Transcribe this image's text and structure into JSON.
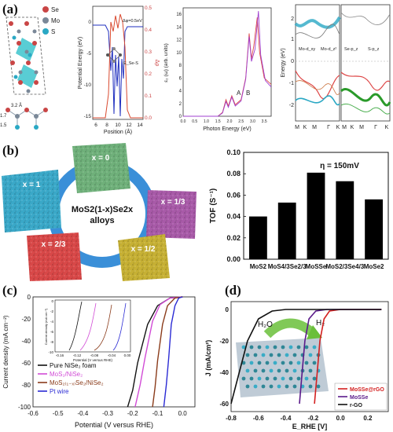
{
  "panel_labels": {
    "a": "(a)",
    "b": "(b)",
    "c": "(c)",
    "d": "(d)"
  },
  "a": {
    "legend": {
      "se": "Se",
      "mo": "Mo",
      "s": "S"
    },
    "structure_labels": {
      "bond1": "3.2 Å",
      "d1": "1.7",
      "d2": "1.5"
    },
    "potential": {
      "xlabel": "Position (Å)",
      "ylabel_left": "Potential Energy (eV)",
      "ylabel_right": "Δρ",
      "xticks": [
        "6",
        "8",
        "10",
        "12",
        "14"
      ],
      "yticks_left": [
        "0",
        "-5",
        "-10",
        "-15"
      ],
      "yticks_right": [
        "0.0",
        "0.1",
        "0.2",
        "0.3",
        "0.4",
        "0.5"
      ],
      "annot_top": "Δφ=0.5eV",
      "annot_mid": "E_Se-S"
    },
    "absorption": {
      "xlabel": "Photon Energy (eV)",
      "ylabel": "ε₂ (ω) (arb. units)",
      "xticks": [
        "0.0",
        "0.5",
        "1.0",
        "1.5",
        "2.0",
        "2.5",
        "3.0",
        "3.5"
      ],
      "yticks": [
        "0",
        "2",
        "4",
        "6",
        "8",
        "10",
        "12",
        "14",
        "16"
      ],
      "peak_a": "A",
      "peak_b": "B",
      "curves": {
        "red": [
          [
            0,
            0
          ],
          [
            1.5,
            0
          ],
          [
            1.7,
            0.6
          ],
          [
            1.85,
            2.6
          ],
          [
            1.95,
            1.6
          ],
          [
            2.1,
            3.2
          ],
          [
            2.25,
            1.8
          ],
          [
            2.5,
            2.6
          ],
          [
            2.7,
            6
          ],
          [
            2.85,
            13
          ],
          [
            2.95,
            9
          ],
          [
            3.05,
            11
          ],
          [
            3.2,
            15.5
          ],
          [
            3.3,
            10
          ],
          [
            3.5,
            6
          ],
          [
            3.8,
            5
          ]
        ],
        "purple": [
          [
            0,
            0
          ],
          [
            1.5,
            0
          ],
          [
            1.7,
            0.5
          ],
          [
            1.85,
            2.3
          ],
          [
            1.95,
            1.4
          ],
          [
            2.1,
            3
          ],
          [
            2.25,
            1.6
          ],
          [
            2.5,
            2.4
          ],
          [
            2.7,
            5.8
          ],
          [
            2.85,
            12.5
          ],
          [
            2.95,
            8.6
          ],
          [
            3.1,
            10.5
          ],
          [
            3.25,
            16.5
          ],
          [
            3.35,
            9.6
          ],
          [
            3.55,
            5.6
          ],
          [
            3.8,
            4.6
          ]
        ]
      }
    },
    "bands": {
      "ylabel": "Energy (eV)",
      "yticks": [
        "2",
        "1",
        "0",
        "-1",
        "-2"
      ],
      "xticks_left": [
        "M",
        "K",
        "M",
        "Γ",
        "K"
      ],
      "xticks_right": [
        "M",
        "K",
        "M",
        "Γ",
        "K"
      ],
      "labels": [
        "Mo-d_xy",
        "Mo-d_z²",
        "Se-p_z",
        "S-p_z"
      ]
    }
  },
  "b": {
    "ring_text": [
      "MoS2(1-x)Se2x",
      "alloys"
    ],
    "tiles": [
      "x = 0",
      "x = 1/3",
      "x = 1/2",
      "x = 2/3",
      "x = 1"
    ],
    "chart_data": {
      "type": "bar",
      "categories": [
        "MoS2",
        "MoS4/3Se2/3",
        "MoSSe",
        "MoS2/3Se4/3",
        "MoSe2"
      ],
      "values": [
        0.04,
        0.053,
        0.081,
        0.073,
        0.056
      ],
      "ylabel": "TOF (S⁻¹)",
      "ylim": [
        0.0,
        0.1
      ],
      "yticks": [
        "0.00",
        "0.02",
        "0.04",
        "0.06",
        "0.08",
        "0.10"
      ],
      "annotation": "η = 150mV"
    }
  },
  "c": {
    "chart_data": {
      "type": "line",
      "xlabel": "Potential (V versus RHE)",
      "ylabel": "Current density (mA cm⁻²)",
      "xlim": [
        -0.6,
        0.05
      ],
      "ylim": [
        -100,
        0
      ],
      "xticks": [
        "-0.6",
        "-0.5",
        "-0.4",
        "-0.3",
        "-0.2",
        "-0.1",
        "0.0"
      ],
      "yticks": [
        "0",
        "-20",
        "-40",
        "-60",
        "-80",
        "-100"
      ],
      "series": [
        {
          "name": "Pure NiSe2 foam",
          "color": "#111111",
          "x": [
            -0.22,
            -0.2,
            -0.18,
            -0.14,
            -0.1,
            -0.05,
            0.0
          ],
          "y": [
            -100,
            -85,
            -60,
            -25,
            -8,
            -1,
            0
          ]
        },
        {
          "name": "MoS2/NiSe2",
          "color": "#d14bd6",
          "x": [
            -0.19,
            -0.17,
            -0.15,
            -0.12,
            -0.09,
            -0.05,
            0.0
          ],
          "y": [
            -100,
            -80,
            -55,
            -22,
            -7,
            -1,
            0
          ]
        },
        {
          "name": "MoS2(1-x)Se2/NiSe2",
          "color": "#8a3b1a",
          "x": [
            -0.12,
            -0.11,
            -0.1,
            -0.08,
            -0.06,
            -0.03,
            0.0
          ],
          "y": [
            -100,
            -82,
            -58,
            -25,
            -8,
            -1,
            0
          ]
        },
        {
          "name": "Pt wire",
          "color": "#2a2ad4",
          "x": [
            -0.075,
            -0.065,
            -0.055,
            -0.045,
            -0.03,
            -0.015,
            0.0
          ],
          "y": [
            -100,
            -80,
            -55,
            -25,
            -8,
            -1,
            0
          ]
        }
      ],
      "legend": [
        "Pure NiSe₂ foam",
        "MoS₂/NiSe₂",
        "MoS₂₍₁₋ₓ₎Se₂/NiSe₂",
        "Pt wire"
      ],
      "inset": {
        "xlabel": "Potential (V versus RHE)",
        "ylabel": "Current density (mA cm⁻²)",
        "xticks": [
          "-0.16",
          "-0.12",
          "-0.08",
          "-0.04",
          "0.00"
        ],
        "yticks": [
          "0",
          "-2",
          "-4",
          "-6",
          "-8",
          "-10"
        ]
      }
    }
  },
  "d": {
    "chart_data": {
      "type": "line",
      "xlabel": "E_RHE [V]",
      "ylabel": "J (mA/cm²)",
      "xlim": [
        -0.8,
        0.35
      ],
      "ylim": [
        -65,
        5
      ],
      "xticks": [
        "-0.8",
        "-0.6",
        "-0.4",
        "-0.2",
        "0.0",
        "0.2"
      ],
      "yticks": [
        "0",
        "-20",
        "-40",
        "-60"
      ],
      "series": [
        {
          "name": "MoSSe@rGO",
          "color": "#d32020",
          "x": [
            -0.19,
            -0.17,
            -0.15,
            -0.12,
            -0.08,
            0.0,
            0.3
          ],
          "y": [
            -60,
            -40,
            -20,
            -6,
            -1,
            0,
            0
          ]
        },
        {
          "name": "MoSSe",
          "color": "#5a1a8a",
          "x": [
            -0.3,
            -0.28,
            -0.26,
            -0.23,
            -0.18,
            -0.1,
            0.3
          ],
          "y": [
            -60,
            -40,
            -20,
            -6,
            -1,
            0,
            0
          ]
        },
        {
          "name": "r-GO",
          "color": "#111111",
          "x": [
            -0.8,
            -0.74,
            -0.68,
            -0.6,
            -0.5,
            -0.4,
            0.3
          ],
          "y": [
            -60,
            -40,
            -20,
            -6,
            -1,
            0,
            0
          ]
        }
      ],
      "legend": [
        "MoSSe@rGO",
        "MoSSe",
        "r-GO"
      ],
      "labels": {
        "h2o": "H₂O",
        "h2": "H₂"
      }
    }
  }
}
